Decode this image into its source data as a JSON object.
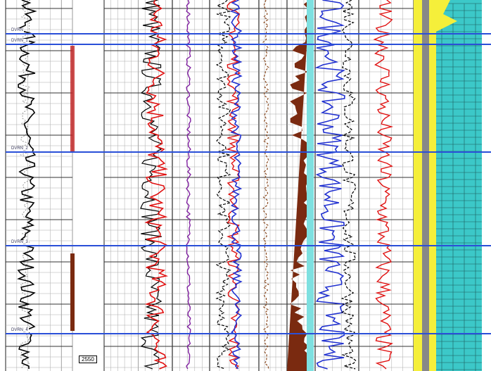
{
  "markers": [
    {
      "label": "DVRN"
    },
    {
      "label": "DVRN_1"
    },
    {
      "label": "DVRN_2"
    },
    {
      "label": "DVRN_3"
    },
    {
      "label": "DVRN_4"
    }
  ],
  "depth_label": "2550",
  "colors": {
    "marker": "#2a4fd8",
    "gamma": "#000000",
    "resistivity": "#e01010",
    "density": "#2030d0",
    "lithology_sand": "#f5ef3a",
    "lithology_carbonate": "#3cc8c8",
    "shading": "#7a2a10"
  }
}
